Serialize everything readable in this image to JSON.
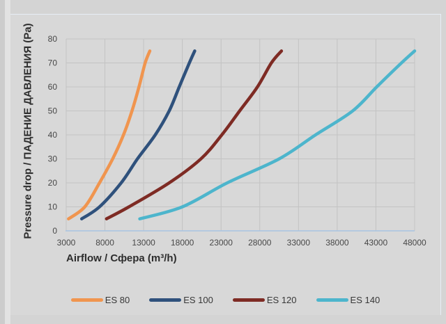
{
  "chart_data": {
    "type": "line",
    "title": "",
    "xlabel": "Airflow / Сфера (m³/h)",
    "ylabel": "Pressure drop / ПАДЕНИЕ ДАВЛЕНИЯ (Pa)",
    "xlim": [
      3000,
      48000
    ],
    "ylim": [
      0,
      80
    ],
    "x_ticks": [
      3000,
      8000,
      13000,
      18000,
      23000,
      28000,
      33000,
      38000,
      43000,
      48000
    ],
    "y_ticks": [
      0,
      10,
      20,
      30,
      40,
      50,
      60,
      70,
      80
    ],
    "grid": true,
    "legend_position": "bottom",
    "series": [
      {
        "name": "ES 80",
        "color": "#F0954F",
        "points": [
          [
            3300,
            5
          ],
          [
            5400,
            10
          ],
          [
            7300,
            20
          ],
          [
            9000,
            30
          ],
          [
            10400,
            40
          ],
          [
            11500,
            50
          ],
          [
            12400,
            60
          ],
          [
            13200,
            70
          ],
          [
            13800,
            75
          ]
        ]
      },
      {
        "name": "ES 100",
        "color": "#2F517C",
        "points": [
          [
            5000,
            5
          ],
          [
            7300,
            10
          ],
          [
            10100,
            20
          ],
          [
            12200,
            30
          ],
          [
            14500,
            40
          ],
          [
            16300,
            50
          ],
          [
            17600,
            60
          ],
          [
            18900,
            70
          ],
          [
            19600,
            75
          ]
        ]
      },
      {
        "name": "ES 120",
        "color": "#7E2B24",
        "points": [
          [
            8200,
            5
          ],
          [
            11100,
            10
          ],
          [
            16300,
            20
          ],
          [
            20400,
            30
          ],
          [
            23100,
            40
          ],
          [
            25400,
            50
          ],
          [
            27700,
            60
          ],
          [
            29500,
            70
          ],
          [
            30800,
            75
          ]
        ]
      },
      {
        "name": "ES 140",
        "color": "#4DB5CC",
        "points": [
          [
            12500,
            5
          ],
          [
            18000,
            10
          ],
          [
            23800,
            20
          ],
          [
            30500,
            30
          ],
          [
            35200,
            40
          ],
          [
            40000,
            50
          ],
          [
            43100,
            60
          ],
          [
            46300,
            70
          ],
          [
            48000,
            75
          ]
        ]
      }
    ],
    "colors": {
      "grid": "#c3c3c3",
      "axis_line": "#a7c4e2",
      "tick_text": "#474747",
      "panel_bg": "#d8d8d8"
    }
  }
}
